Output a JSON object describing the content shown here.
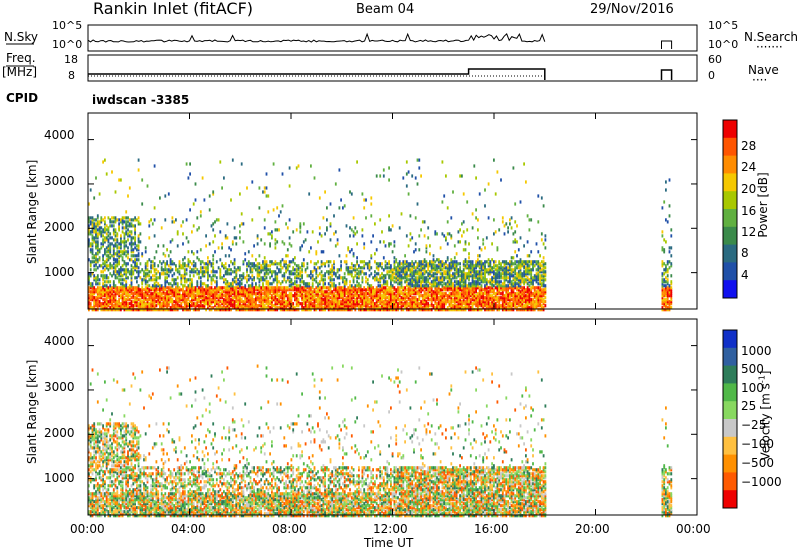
{
  "header": {
    "station": "Rankin Inlet (fitACF)",
    "beam": "Beam 04",
    "date": "29/Nov/2016"
  },
  "strip_labels": {
    "nsky": "N.Sky",
    "nsearch": "N.Search",
    "nsearch_line": "·······",
    "freq": "Freq.",
    "mhz": "[MHz]",
    "nave": "Nave",
    "nave_line": "····",
    "cpid": "CPID",
    "cpid_value": "iwdscan -3385"
  },
  "strip_ticks": {
    "noise_left": [
      "10^5",
      "10^0"
    ],
    "noise_right": [
      "10^5",
      "10^0"
    ],
    "freq_left": [
      "18",
      "8"
    ],
    "freq_right": [
      "60",
      "0"
    ]
  },
  "panels": {
    "ylabel": "Slant Range [km]",
    "yticks": [
      "4000",
      "3000",
      "2000",
      "1000"
    ],
    "xticks": [
      "00:00",
      "04:00",
      "08:00",
      "12:00",
      "16:00",
      "20:00",
      "00:00"
    ],
    "xlabel": "Time UT"
  },
  "power_scale": {
    "label": "Power [dB]",
    "ticks": [
      "28",
      "24",
      "20",
      "16",
      "12",
      "8",
      "4"
    ],
    "colors": [
      "#ee0000",
      "#ff5500",
      "#ff8c00",
      "#f5c800",
      "#a8c800",
      "#60b040",
      "#3a8a4a",
      "#2a6a80",
      "#2050a8",
      "#1010ee"
    ]
  },
  "velocity_scale": {
    "label": "Velocity [m s",
    "label_sup": "-1",
    "label_end": "]",
    "ticks": [
      "1000",
      "500",
      "100",
      "25",
      "−25",
      "−100",
      "−500",
      "−1000"
    ],
    "colors": [
      "#1030c8",
      "#3060a0",
      "#2e7d5a",
      "#50b848",
      "#88d860",
      "#c8c8c8",
      "#ffc040",
      "#ff9000",
      "#ff5a00",
      "#ee0000"
    ]
  },
  "chart_data": {
    "type": "heatmap",
    "title": "Rankin Inlet (fitACF)",
    "xlabel": "Time UT",
    "ylabel": "Slant Range [km]",
    "x_range_hours": [
      0,
      24
    ],
    "y_range_km": [
      180,
      4600
    ],
    "x_ticks": [
      "00:00",
      "04:00",
      "08:00",
      "12:00",
      "16:00",
      "20:00",
      "00:00"
    ],
    "y_ticks": [
      1000,
      2000,
      3000,
      4000
    ],
    "data_windows_hours": [
      [
        0,
        18
      ],
      [
        22.6,
        23.0
      ]
    ],
    "power_colorbar_dB": [
      4,
      8,
      12,
      16,
      20,
      24,
      28
    ],
    "velocity_colorbar_ms": [
      1000,
      500,
      100,
      25,
      -25,
      -100,
      -500,
      -1000
    ],
    "frequency_step_hour": 15,
    "frequency_MHz_before": 8,
    "frequency_MHz_after": 12
  }
}
